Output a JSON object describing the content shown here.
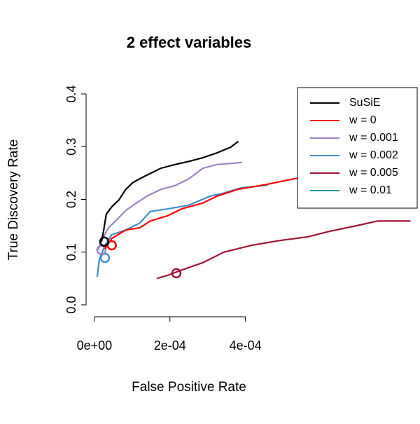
{
  "chart_data": {
    "type": "line",
    "title": "2 effect variables",
    "x_label": "False Positive Rate",
    "y_label": "True Discovery Rate",
    "xlim": [
      -2.2e-05,
      0.00084
    ],
    "ylim": [
      0,
      0.4
    ],
    "xticks": [
      {
        "value": 0,
        "label": "0e+00"
      },
      {
        "value": 0.0002,
        "label": "2e-04"
      },
      {
        "value": 0.0004,
        "label": "4e-04"
      }
    ],
    "yticks": [
      {
        "value": 0,
        "label": "0.0"
      },
      0.1,
      0.2,
      0.3,
      0.4
    ],
    "legend_position": "top-right",
    "series": [
      {
        "name": "SuSiE",
        "color": "#000000",
        "x": [
          1.85e-05,
          2.4e-05,
          3.15e-05,
          4.6e-05,
          6.5e-05,
          8.3e-05,
          0.000102,
          0.00012,
          0.000139,
          0.000176,
          0.000213,
          0.00025,
          0.000287,
          0.000324,
          0.000361,
          0.000381
        ],
        "values": [
          0.12,
          0.139,
          0.172,
          0.186,
          0.199,
          0.219,
          0.232,
          0.239,
          0.246,
          0.259,
          0.266,
          0.272,
          0.279,
          0.288,
          0.299,
          0.31
        ],
        "point": {
          "x": 2.6e-05,
          "y": 0.12
        }
      },
      {
        "name": "w = 0",
        "color": "#ff0000",
        "x": [
          2.8e-05,
          4.6e-05,
          8.3e-05,
          0.00012,
          0.000148,
          0.000194,
          0.000231,
          0.000287,
          0.000324,
          0.00038,
          0.000454,
          0.000528,
          0.000602,
          0.000657,
          0.000685
        ],
        "values": [
          0.106,
          0.126,
          0.142,
          0.146,
          0.159,
          0.169,
          0.182,
          0.193,
          0.206,
          0.219,
          0.228,
          0.239,
          0.246,
          0.262,
          0.268
        ],
        "point": {
          "x": 4.6e-05,
          "y": 0.113
        }
      },
      {
        "name": "w = 0.001",
        "color": "#9c84c4",
        "x": [
          9.3e-06,
          2.2e-05,
          3.7e-05,
          5.6e-05,
          8.3e-05,
          0.000111,
          0.000139,
          0.000176,
          0.000213,
          0.00025,
          0.000287,
          0.000324,
          0.000391
        ],
        "values": [
          0.104,
          0.126,
          0.146,
          0.159,
          0.179,
          0.193,
          0.206,
          0.219,
          0.226,
          0.239,
          0.259,
          0.266,
          0.27
        ],
        "point": {
          "x": 1.85e-05,
          "y": 0.104
        }
      },
      {
        "name": "w = 0.002",
        "color": "#3f8fc9",
        "x": [
          7.4e-06,
          1.3e-05,
          2.8e-05,
          4.6e-05,
          8.3e-05,
          0.00012,
          0.000148,
          0.000194,
          0.00025,
          0.000306,
          0.000343,
          0.000389,
          0.000459
        ],
        "values": [
          0.053,
          0.086,
          0.113,
          0.133,
          0.142,
          0.155,
          0.177,
          0.182,
          0.189,
          0.206,
          0.212,
          0.222,
          0.227
        ],
        "point": {
          "x": 2.8e-05,
          "y": 0.089
        }
      },
      {
        "name": "w = 0.005",
        "color": "#9e1435",
        "x": [
          0.000165,
          0.000194,
          0.000231,
          0.000287,
          0.000343,
          0.000417,
          0.000491,
          0.000565,
          0.00062,
          0.000694,
          0.00075,
          0.000837
        ],
        "values": [
          0.05,
          0.056,
          0.066,
          0.08,
          0.1,
          0.113,
          0.122,
          0.129,
          0.139,
          0.15,
          0.159,
          0.159
        ],
        "point": {
          "x": 0.000217,
          "y": 0.06
        }
      },
      {
        "name": "w = 0.01",
        "color": "#1f9a9a",
        "x": [
          1.3e-05,
          2.8e-05,
          4.6e-05
        ],
        "values": [
          0.086,
          0.113,
          0.133
        ]
      }
    ]
  }
}
